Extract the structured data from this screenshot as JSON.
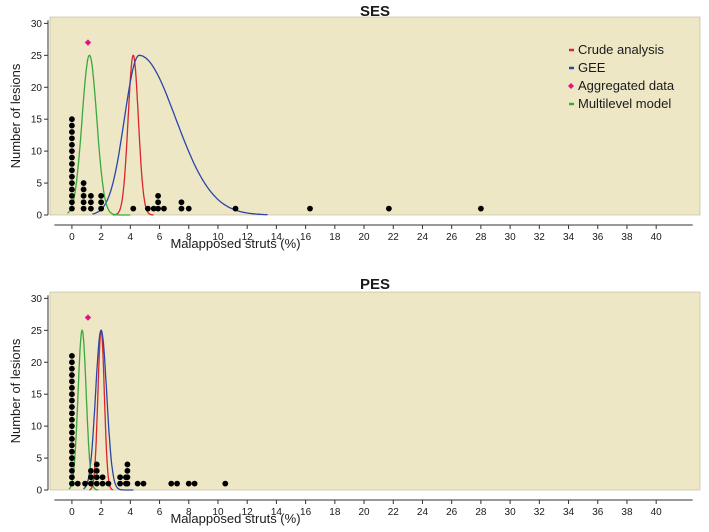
{
  "colors": {
    "panel_bg": "#ede7c6",
    "points": "#000000",
    "crude": "#d8262b",
    "gee": "#2b46a8",
    "aggregated": "#e0157f",
    "multilevel": "#3aa83e"
  },
  "legend": [
    {
      "key": "crude",
      "label": "Crude analysis",
      "marker": "dash"
    },
    {
      "key": "gee",
      "label": "GEE",
      "marker": "dash"
    },
    {
      "key": "aggregated",
      "label": "Aggregated data",
      "marker": "diamond"
    },
    {
      "key": "multilevel",
      "label": "Multilevel model",
      "marker": "dash"
    }
  ],
  "chart_data": [
    {
      "type": "scatter",
      "title": "SES",
      "xlabel": "Malapposed struts (%)",
      "ylabel": "Number of lesions",
      "xlim": [
        -1.5,
        43
      ],
      "ylim": [
        0,
        31
      ],
      "xticks": [
        0,
        2,
        4,
        6,
        8,
        10,
        12,
        14,
        16,
        18,
        20,
        22,
        24,
        26,
        28,
        30,
        32,
        34,
        36,
        38,
        40
      ],
      "yticks": [
        0,
        5,
        10,
        15,
        20,
        25,
        30
      ],
      "legend_position": "top-right",
      "grid": false,
      "dot_stacks": [
        {
          "x": 0,
          "count": 15
        },
        {
          "x": 0.8,
          "count": 5
        },
        {
          "x": 1.3,
          "count": 3
        },
        {
          "x": 2.0,
          "count": 3
        },
        {
          "x": 4.2,
          "count": 1
        },
        {
          "x": 5.2,
          "count": 1
        },
        {
          "x": 5.6,
          "count": 1
        },
        {
          "x": 5.9,
          "count": 3
        },
        {
          "x": 6.3,
          "count": 1
        },
        {
          "x": 7.5,
          "count": 2
        },
        {
          "x": 8.0,
          "count": 1
        },
        {
          "x": 11.2,
          "count": 1
        },
        {
          "x": 16.3,
          "count": 1
        },
        {
          "x": 21.7,
          "count": 1
        },
        {
          "x": 28.0,
          "count": 1
        }
      ],
      "series": [
        {
          "name": "Crude analysis",
          "shape": "normal",
          "center": 4.2,
          "width": 0.35,
          "peak": 25,
          "x_range": [
            2.8,
            5.6
          ],
          "color_key": "crude"
        },
        {
          "name": "GEE",
          "shape": "skewed",
          "center": 4.6,
          "left_width": 1.0,
          "right_width": 2.5,
          "peak": 25,
          "x_range": [
            1.4,
            13.4
          ],
          "color_key": "gee"
        },
        {
          "name": "Aggregated data",
          "shape": "point",
          "x": 1.1,
          "y": 27,
          "color_key": "aggregated"
        },
        {
          "name": "Multilevel model",
          "shape": "normal",
          "center": 1.2,
          "width": 0.5,
          "peak": 25,
          "x_range": [
            -0.3,
            4.0
          ],
          "color_key": "multilevel"
        }
      ]
    },
    {
      "type": "scatter",
      "title": "PES",
      "xlabel": "Malapposed struts (%)",
      "ylabel": "Number of lesions",
      "xlim": [
        -1.5,
        43
      ],
      "ylim": [
        0,
        31
      ],
      "xticks": [
        0,
        2,
        4,
        6,
        8,
        10,
        12,
        14,
        16,
        18,
        20,
        22,
        24,
        26,
        28,
        30,
        32,
        34,
        36,
        38,
        40
      ],
      "yticks": [
        0,
        5,
        10,
        15,
        20,
        25,
        30
      ],
      "legend_position": "none",
      "grid": false,
      "dot_stacks": [
        {
          "x": 0,
          "count": 21
        },
        {
          "x": 0.4,
          "count": 1
        },
        {
          "x": 0.9,
          "count": 1
        },
        {
          "x": 1.3,
          "count": 3
        },
        {
          "x": 1.7,
          "count": 4
        },
        {
          "x": 2.1,
          "count": 2
        },
        {
          "x": 2.5,
          "count": 1
        },
        {
          "x": 3.3,
          "count": 2
        },
        {
          "x": 3.7,
          "count": 2
        },
        {
          "x": 3.8,
          "count": 4
        },
        {
          "x": 4.5,
          "count": 1
        },
        {
          "x": 4.9,
          "count": 1
        },
        {
          "x": 6.8,
          "count": 1
        },
        {
          "x": 7.2,
          "count": 1
        },
        {
          "x": 8.0,
          "count": 1
        },
        {
          "x": 8.4,
          "count": 1
        },
        {
          "x": 10.5,
          "count": 1
        }
      ],
      "series": [
        {
          "name": "Crude analysis",
          "shape": "normal",
          "center": 2.0,
          "width": 0.22,
          "peak": 25,
          "x_range": [
            1.2,
            2.8
          ],
          "color_key": "crude"
        },
        {
          "name": "GEE",
          "shape": "normal",
          "center": 2.0,
          "width": 0.38,
          "peak": 25,
          "x_range": [
            0.8,
            4.2
          ],
          "color_key": "gee"
        },
        {
          "name": "Aggregated data",
          "shape": "point",
          "x": 1.1,
          "y": 27,
          "color_key": "aggregated"
        },
        {
          "name": "Multilevel model",
          "shape": "normal",
          "center": 0.7,
          "width": 0.28,
          "peak": 25,
          "x_range": [
            -0.2,
            1.8
          ],
          "color_key": "multilevel"
        }
      ]
    }
  ]
}
